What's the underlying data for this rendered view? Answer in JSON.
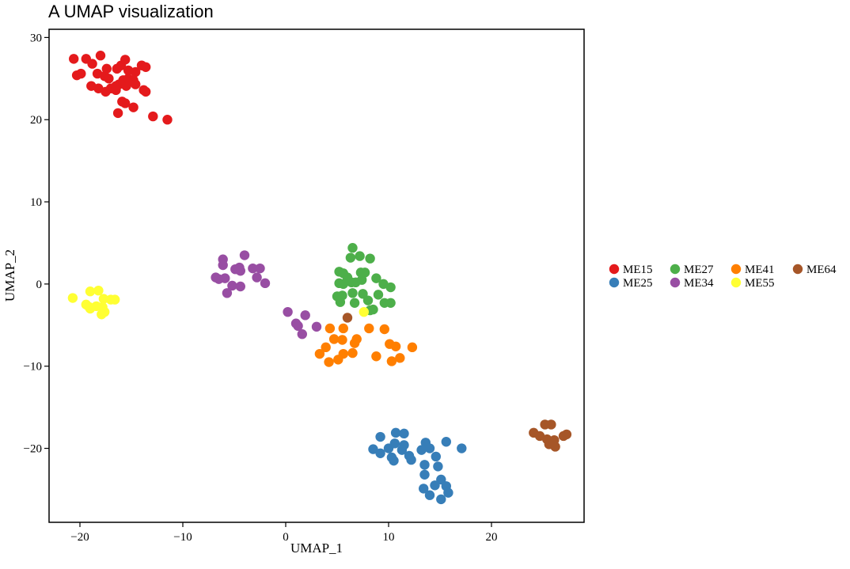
{
  "chart_data": {
    "type": "scatter",
    "title": "A UMAP visualization",
    "xlabel": "UMAP_1",
    "ylabel": "UMAP_2",
    "xlim": [
      -23,
      29
    ],
    "ylim": [
      -29,
      31
    ],
    "xticks": [
      -20,
      -10,
      0,
      10,
      20
    ],
    "xtick_labels": [
      "−20",
      "−10",
      "0",
      "10",
      "20"
    ],
    "yticks": [
      30,
      20,
      10,
      0,
      -10,
      -20
    ],
    "ytick_labels": [
      "30",
      "20",
      "10",
      "0",
      "−10",
      "−20"
    ],
    "grid": false,
    "legend_position": "right",
    "series": [
      {
        "name": "ME15",
        "color": "#e41a1c",
        "points": [
          [
            -20.6,
            27.4
          ],
          [
            -19.4,
            27.4
          ],
          [
            -18.8,
            26.8
          ],
          [
            -18.0,
            27.8
          ],
          [
            -19.9,
            25.6
          ],
          [
            -20.3,
            25.4
          ],
          [
            -18.3,
            25.6
          ],
          [
            -17.6,
            25.3
          ],
          [
            -17.4,
            26.2
          ],
          [
            -17.2,
            25.0
          ],
          [
            -16.4,
            26.2
          ],
          [
            -16.0,
            26.6
          ],
          [
            -15.6,
            27.3
          ],
          [
            -15.3,
            26.0
          ],
          [
            -14.6,
            25.8
          ],
          [
            -14.0,
            26.6
          ],
          [
            -13.6,
            26.4
          ],
          [
            -18.9,
            24.1
          ],
          [
            -18.2,
            23.8
          ],
          [
            -17.5,
            23.4
          ],
          [
            -17.0,
            23.8
          ],
          [
            -16.5,
            24.1
          ],
          [
            -16.2,
            24.3
          ],
          [
            -15.8,
            24.8
          ],
          [
            -15.5,
            24.1
          ],
          [
            -15.3,
            25.0
          ],
          [
            -14.8,
            24.8
          ],
          [
            -14.6,
            24.3
          ],
          [
            -13.8,
            23.6
          ],
          [
            -13.6,
            23.4
          ],
          [
            -16.5,
            23.6
          ],
          [
            -15.9,
            22.2
          ],
          [
            -15.6,
            22.0
          ],
          [
            -14.8,
            21.5
          ],
          [
            -16.3,
            20.8
          ],
          [
            -12.9,
            20.4
          ],
          [
            -11.5,
            20.0
          ]
        ]
      },
      {
        "name": "ME25",
        "color": "#377eb8",
        "points": [
          [
            9.2,
            -18.6
          ],
          [
            10.7,
            -18.1
          ],
          [
            11.5,
            -18.2
          ],
          [
            13.6,
            -19.3
          ],
          [
            15.6,
            -19.2
          ],
          [
            17.1,
            -20.0
          ],
          [
            8.5,
            -20.1
          ],
          [
            9.2,
            -20.6
          ],
          [
            10.0,
            -20.0
          ],
          [
            10.6,
            -19.4
          ],
          [
            11.5,
            -19.6
          ],
          [
            11.3,
            -20.2
          ],
          [
            12.0,
            -20.9
          ],
          [
            10.3,
            -21.1
          ],
          [
            10.5,
            -21.5
          ],
          [
            12.2,
            -21.4
          ],
          [
            13.2,
            -20.2
          ],
          [
            14.0,
            -20.0
          ],
          [
            14.6,
            -21.0
          ],
          [
            13.5,
            -22.0
          ],
          [
            14.8,
            -22.2
          ],
          [
            13.5,
            -23.2
          ],
          [
            15.1,
            -23.8
          ],
          [
            15.6,
            -24.6
          ],
          [
            14.5,
            -24.5
          ],
          [
            13.4,
            -24.9
          ],
          [
            15.8,
            -25.4
          ],
          [
            14.0,
            -25.7
          ],
          [
            15.1,
            -26.2
          ]
        ]
      },
      {
        "name": "ME27",
        "color": "#4daf4a",
        "points": [
          [
            6.5,
            4.4
          ],
          [
            6.3,
            3.2
          ],
          [
            7.2,
            3.4
          ],
          [
            8.2,
            3.1
          ],
          [
            5.2,
            1.5
          ],
          [
            5.6,
            1.3
          ],
          [
            6.0,
            0.8
          ],
          [
            7.3,
            1.4
          ],
          [
            7.7,
            1.4
          ],
          [
            8.8,
            0.7
          ],
          [
            5.2,
            0.1
          ],
          [
            5.6,
            0.0
          ],
          [
            6.4,
            0.2
          ],
          [
            6.8,
            0.2
          ],
          [
            7.4,
            0.5
          ],
          [
            9.5,
            0.0
          ],
          [
            10.2,
            -0.4
          ],
          [
            5.0,
            -1.5
          ],
          [
            5.5,
            -1.4
          ],
          [
            6.5,
            -1.1
          ],
          [
            7.5,
            -1.2
          ],
          [
            9.0,
            -1.3
          ],
          [
            5.3,
            -2.2
          ],
          [
            6.7,
            -2.3
          ],
          [
            8.0,
            -2.0
          ],
          [
            9.6,
            -2.3
          ],
          [
            10.2,
            -2.3
          ],
          [
            8.5,
            -3.1
          ],
          [
            8.2,
            -3.2
          ]
        ]
      },
      {
        "name": "ME34",
        "color": "#984ea3",
        "points": [
          [
            -6.1,
            3.0
          ],
          [
            -6.1,
            2.3
          ],
          [
            -4.0,
            3.5
          ],
          [
            -4.5,
            2.0
          ],
          [
            -4.9,
            1.8
          ],
          [
            -4.4,
            1.6
          ],
          [
            -3.2,
            1.9
          ],
          [
            -2.5,
            1.9
          ],
          [
            -6.8,
            0.8
          ],
          [
            -6.5,
            0.6
          ],
          [
            -5.9,
            0.7
          ],
          [
            -2.8,
            0.8
          ],
          [
            -5.2,
            -0.2
          ],
          [
            -4.4,
            -0.3
          ],
          [
            -2.0,
            0.1
          ],
          [
            -5.7,
            -1.1
          ],
          [
            0.2,
            -3.4
          ],
          [
            1.9,
            -3.8
          ],
          [
            1.0,
            -4.8
          ],
          [
            1.2,
            -5.1
          ],
          [
            3.0,
            -5.2
          ],
          [
            1.6,
            -6.1
          ]
        ]
      },
      {
        "name": "ME41",
        "color": "#ff7f00",
        "points": [
          [
            4.3,
            -5.4
          ],
          [
            5.6,
            -5.4
          ],
          [
            8.1,
            -5.4
          ],
          [
            9.6,
            -5.5
          ],
          [
            4.7,
            -6.7
          ],
          [
            5.5,
            -6.8
          ],
          [
            6.9,
            -6.7
          ],
          [
            6.7,
            -7.2
          ],
          [
            10.1,
            -7.3
          ],
          [
            10.7,
            -7.6
          ],
          [
            12.3,
            -7.7
          ],
          [
            3.9,
            -7.7
          ],
          [
            3.3,
            -8.5
          ],
          [
            5.6,
            -8.5
          ],
          [
            6.5,
            -8.4
          ],
          [
            8.8,
            -8.8
          ],
          [
            5.1,
            -9.2
          ],
          [
            10.3,
            -9.4
          ],
          [
            11.1,
            -9.0
          ],
          [
            4.2,
            -9.5
          ]
        ]
      },
      {
        "name": "ME55",
        "color": "#ffff33",
        "points": [
          [
            -19.0,
            -0.9
          ],
          [
            -18.2,
            -0.8
          ],
          [
            -20.7,
            -1.7
          ],
          [
            -17.7,
            -1.8
          ],
          [
            -17.0,
            -1.9
          ],
          [
            -16.6,
            -1.9
          ],
          [
            -19.4,
            -2.5
          ],
          [
            -19.1,
            -2.8
          ],
          [
            -18.4,
            -2.7
          ],
          [
            -17.8,
            -2.8
          ],
          [
            -19.0,
            -3.0
          ],
          [
            -17.6,
            -3.4
          ],
          [
            -17.9,
            -3.7
          ],
          [
            7.6,
            -3.4
          ]
        ]
      },
      {
        "name": "ME64",
        "color": "#a65628",
        "points": [
          [
            6.0,
            -4.1
          ],
          [
            25.2,
            -17.1
          ],
          [
            25.8,
            -17.1
          ],
          [
            24.1,
            -18.1
          ],
          [
            24.7,
            -18.5
          ],
          [
            25.4,
            -18.9
          ],
          [
            26.1,
            -19.0
          ],
          [
            27.0,
            -18.5
          ],
          [
            27.3,
            -18.3
          ],
          [
            25.6,
            -19.5
          ],
          [
            26.2,
            -19.8
          ]
        ]
      }
    ]
  }
}
